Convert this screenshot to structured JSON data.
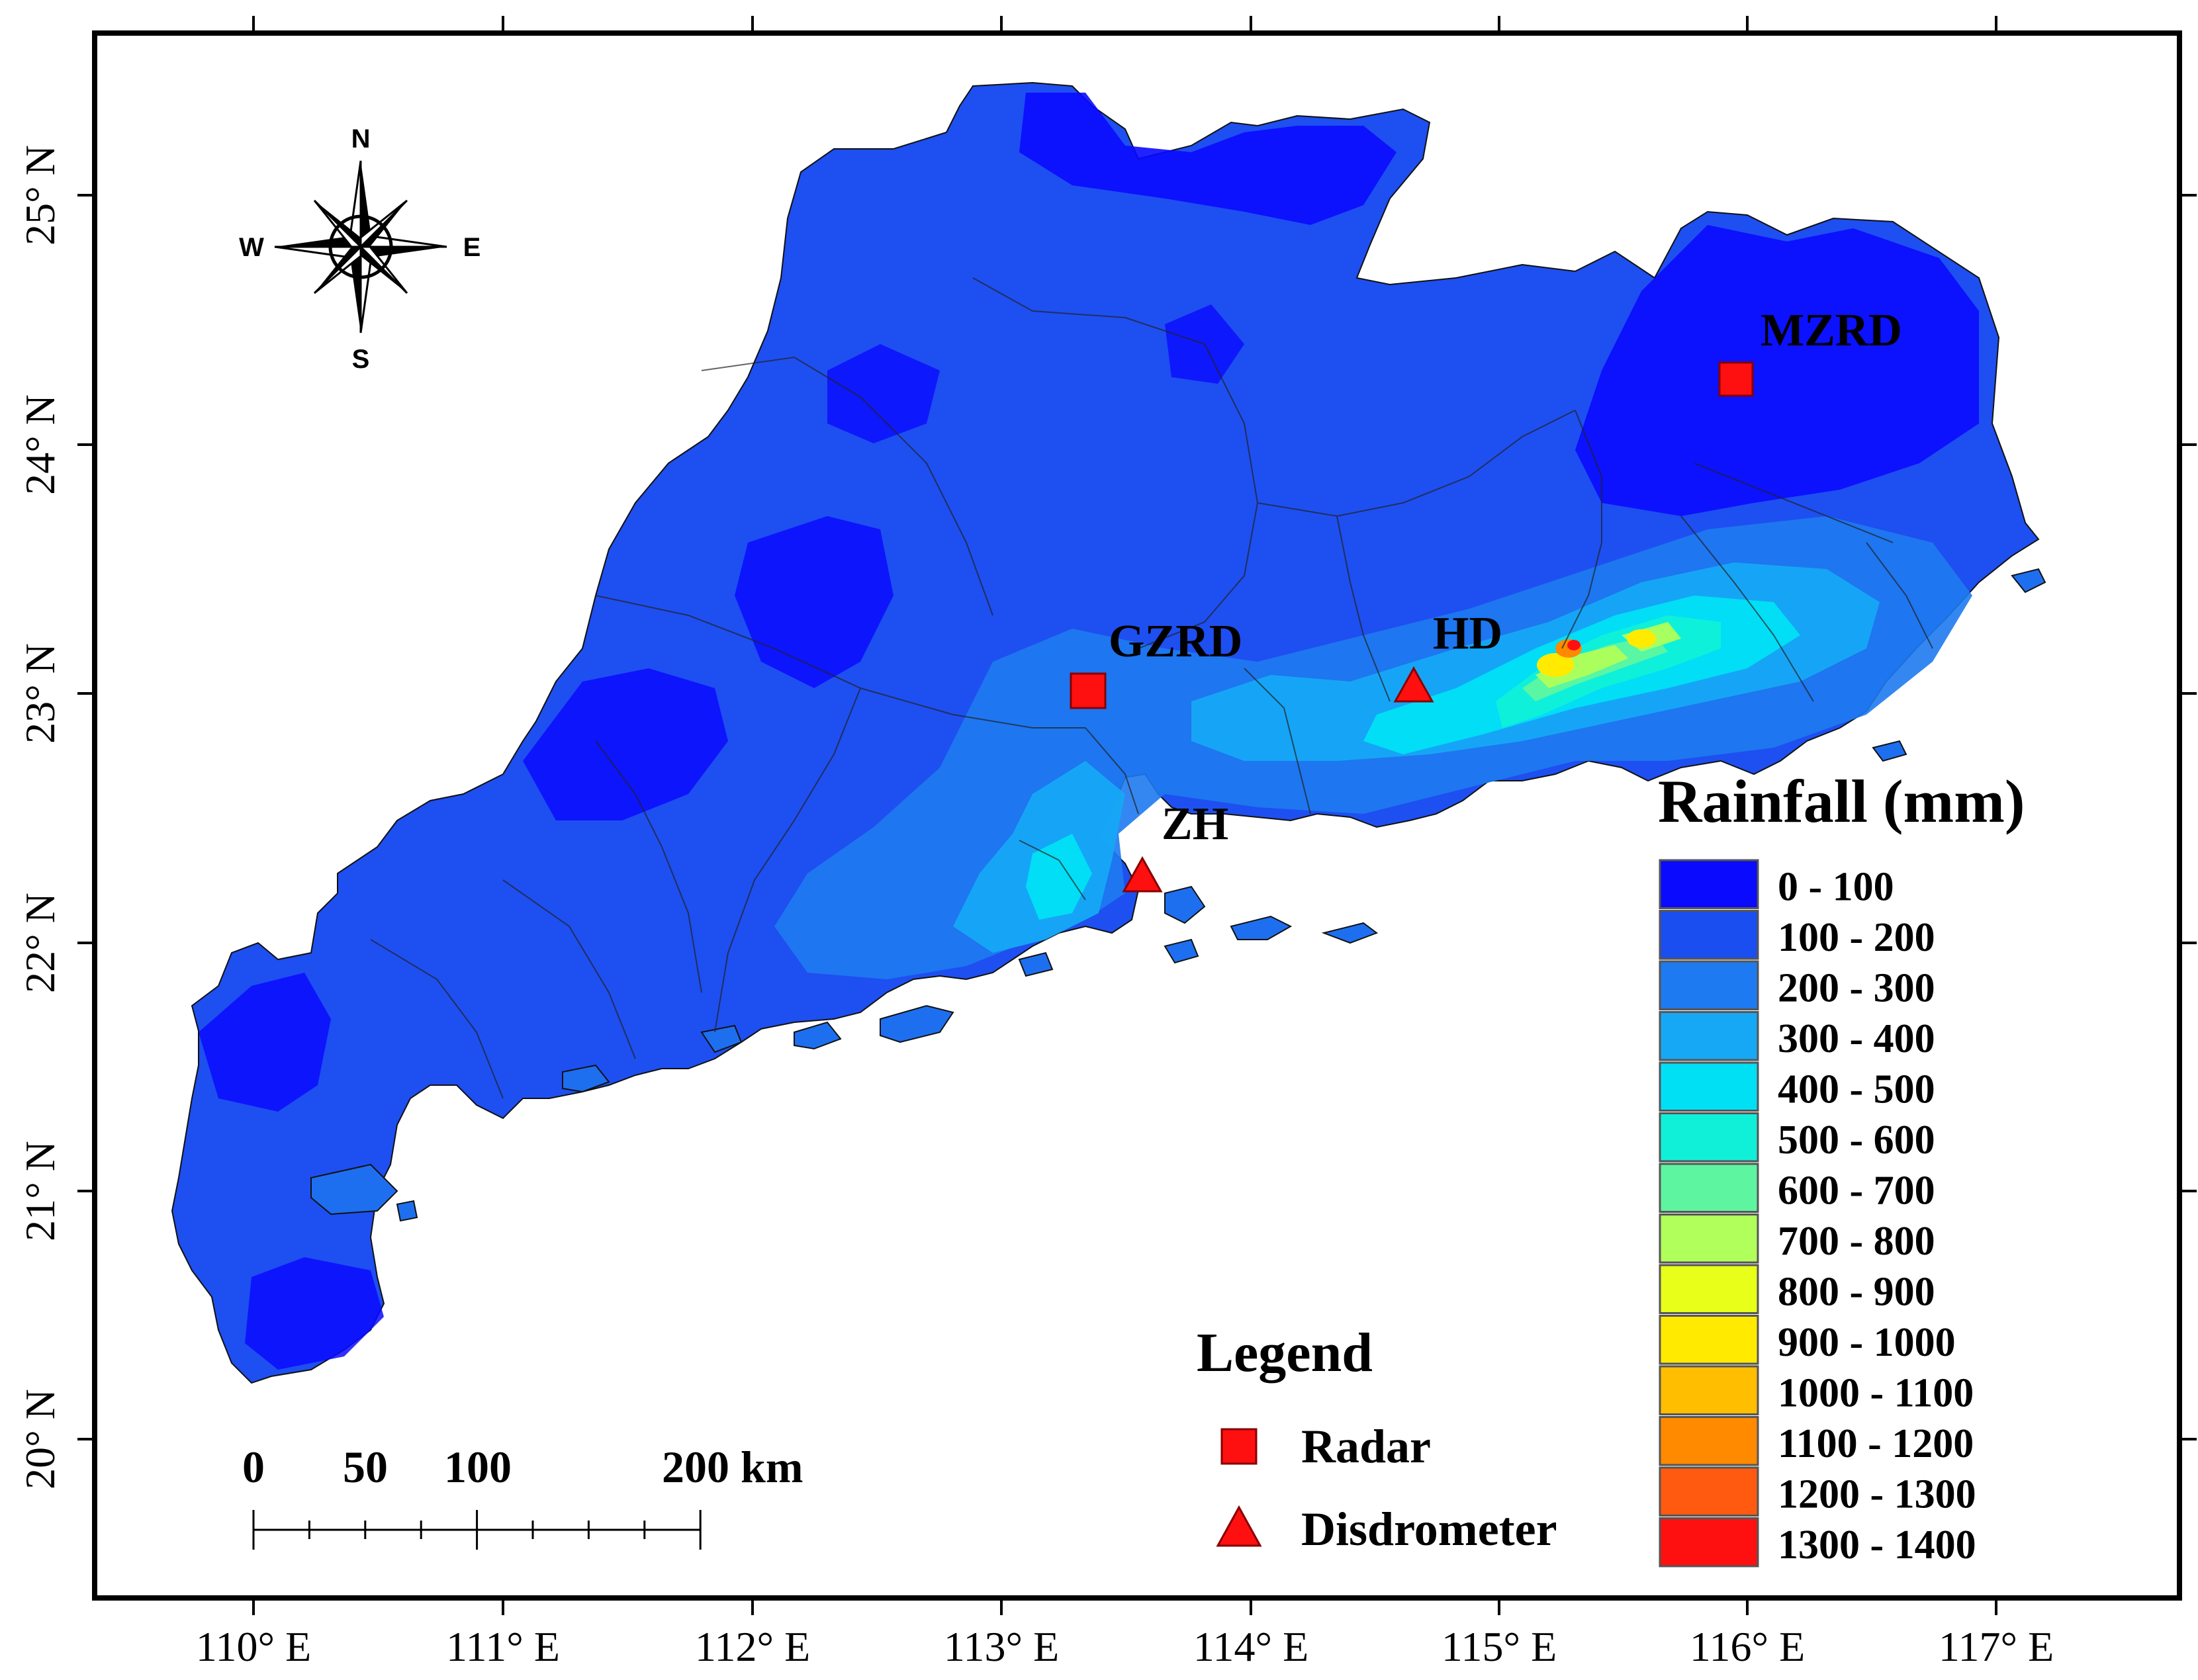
{
  "map": {
    "x_ticks": [
      "110° E",
      "111° E",
      "112° E",
      "113° E",
      "114° E",
      "115° E",
      "116° E",
      "117° E"
    ],
    "y_ticks": [
      "25° N",
      "24° N",
      "23° N",
      "22° N",
      "21° N",
      "20° N"
    ]
  },
  "compass": {
    "n": "N",
    "s": "S",
    "e": "E",
    "w": "W"
  },
  "stations": {
    "mzrd": "MZRD",
    "gzrd": "GZRD",
    "hd": "HD",
    "zh": "ZH"
  },
  "scale_bar": {
    "labels": [
      "0",
      "50",
      "100",
      "200 km"
    ]
  },
  "legend": {
    "title": "Legend",
    "radar_label": "Radar",
    "disdrometer_label": "Disdrometer",
    "marker_color": "#ff1010"
  },
  "rainfall_legend": {
    "title": "Rainfall (mm)",
    "classes": [
      {
        "label": "0 - 100",
        "color": "#0a0aff"
      },
      {
        "label": "100 - 200",
        "color": "#1a4ef0"
      },
      {
        "label": "200 - 300",
        "color": "#1e7af0"
      },
      {
        "label": "300 - 400",
        "color": "#16a8f5"
      },
      {
        "label": "400 - 500",
        "color": "#00e0f5"
      },
      {
        "label": "500 - 600",
        "color": "#10f0d8"
      },
      {
        "label": "600 - 700",
        "color": "#5ef5a0"
      },
      {
        "label": "700 - 800",
        "color": "#b0ff5a"
      },
      {
        "label": "800 - 900",
        "color": "#e8ff1a"
      },
      {
        "label": "900 - 1000",
        "color": "#ffea00"
      },
      {
        "label": "1000 - 1100",
        "color": "#ffbe00"
      },
      {
        "label": "1100 - 1200",
        "color": "#ff8a00"
      },
      {
        "label": "1200 - 1300",
        "color": "#ff5a10"
      },
      {
        "label": "1300 - 1400",
        "color": "#ff1010"
      }
    ]
  }
}
